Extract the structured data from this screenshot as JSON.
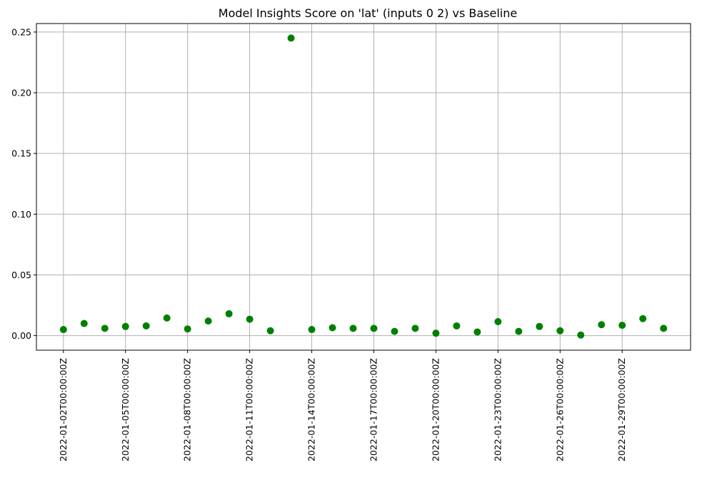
{
  "chart_data": {
    "type": "scatter",
    "title": "Model Insights Score on 'lat' (inputs 0 2) vs Baseline",
    "xlabel": "",
    "ylabel": "",
    "x": [
      "2022-01-02T00:00:00Z",
      "2022-01-03T00:00:00Z",
      "2022-01-04T00:00:00Z",
      "2022-01-05T00:00:00Z",
      "2022-01-06T00:00:00Z",
      "2022-01-07T00:00:00Z",
      "2022-01-08T00:00:00Z",
      "2022-01-09T00:00:00Z",
      "2022-01-10T00:00:00Z",
      "2022-01-11T00:00:00Z",
      "2022-01-12T00:00:00Z",
      "2022-01-13T00:00:00Z",
      "2022-01-14T00:00:00Z",
      "2022-01-15T00:00:00Z",
      "2022-01-16T00:00:00Z",
      "2022-01-17T00:00:00Z",
      "2022-01-18T00:00:00Z",
      "2022-01-19T00:00:00Z",
      "2022-01-20T00:00:00Z",
      "2022-01-21T00:00:00Z",
      "2022-01-22T00:00:00Z",
      "2022-01-23T00:00:00Z",
      "2022-01-24T00:00:00Z",
      "2022-01-25T00:00:00Z",
      "2022-01-26T00:00:00Z",
      "2022-01-27T00:00:00Z",
      "2022-01-28T00:00:00Z",
      "2022-01-29T00:00:00Z",
      "2022-01-30T00:00:00Z",
      "2022-01-31T00:00:00Z"
    ],
    "values": [
      0.005,
      0.01,
      0.006,
      0.0075,
      0.008,
      0.0145,
      0.0055,
      0.012,
      0.018,
      0.0135,
      0.004,
      0.245,
      0.005,
      0.0065,
      0.006,
      0.006,
      0.0035,
      0.006,
      0.002,
      0.008,
      0.003,
      0.0115,
      0.0035,
      0.0075,
      0.004,
      0.0005,
      0.009,
      0.0085,
      0.014,
      0.006
    ],
    "x_tick_labels": [
      "2022-01-02T00:00:00Z",
      "2022-01-05T00:00:00Z",
      "2022-01-08T00:00:00Z",
      "2022-01-11T00:00:00Z",
      "2022-01-14T00:00:00Z",
      "2022-01-17T00:00:00Z",
      "2022-01-20T00:00:00Z",
      "2022-01-23T00:00:00Z",
      "2022-01-26T00:00:00Z",
      "2022-01-29T00:00:00Z"
    ],
    "y_ticks": [
      0.0,
      0.05,
      0.1,
      0.15,
      0.2,
      0.25
    ],
    "y_tick_labels": [
      "0.00",
      "0.05",
      "0.10",
      "0.15",
      "0.20",
      "0.25"
    ],
    "ylim": [
      -0.012,
      0.257
    ],
    "grid": true,
    "legend": "none",
    "marker_color": "#008000"
  }
}
